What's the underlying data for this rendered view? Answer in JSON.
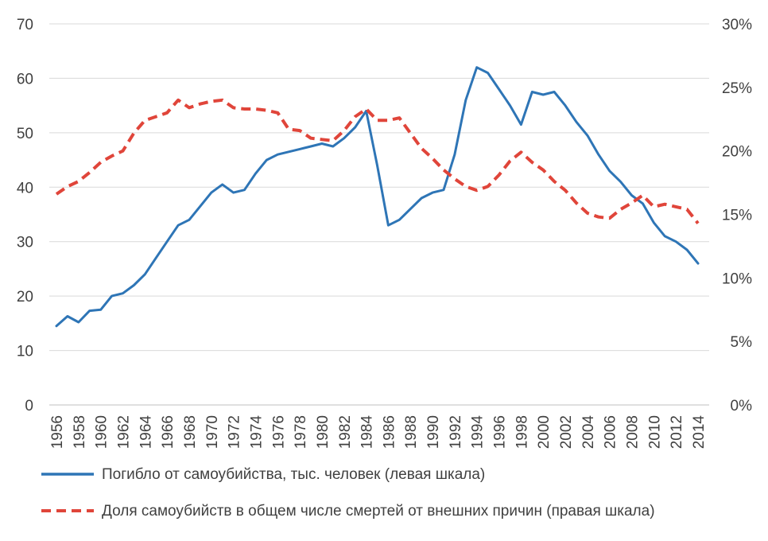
{
  "chart_data": {
    "type": "line",
    "title": "",
    "x": [
      1956,
      1957,
      1958,
      1959,
      1960,
      1961,
      1962,
      1963,
      1964,
      1965,
      1966,
      1967,
      1968,
      1969,
      1970,
      1971,
      1972,
      1973,
      1974,
      1975,
      1976,
      1977,
      1978,
      1979,
      1980,
      1981,
      1982,
      1983,
      1984,
      1985,
      1986,
      1987,
      1988,
      1989,
      1990,
      1991,
      1992,
      1993,
      1994,
      1995,
      1996,
      1997,
      1998,
      1999,
      2000,
      2001,
      2002,
      2003,
      2004,
      2005,
      2006,
      2007,
      2008,
      2009,
      2010,
      2011,
      2012,
      2013,
      2014
    ],
    "x_tick_labels": [
      "1956",
      "1958",
      "1960",
      "1962",
      "1964",
      "1966",
      "1968",
      "1970",
      "1972",
      "1974",
      "1976",
      "1978",
      "1980",
      "1982",
      "1984",
      "1986",
      "1988",
      "1990",
      "1992",
      "1994",
      "1996",
      "1998",
      "2000",
      "2002",
      "2004",
      "2006",
      "2008",
      "2010",
      "2012",
      "2014"
    ],
    "left_axis": {
      "ylim": [
        0,
        70
      ],
      "ticks": [
        "0",
        "10",
        "20",
        "30",
        "40",
        "50",
        "60",
        "70"
      ]
    },
    "right_axis": {
      "ylim": [
        0,
        30
      ],
      "ticks": [
        "0%",
        "5%",
        "10%",
        "15%",
        "20%",
        "25%",
        "30%"
      ]
    },
    "series": [
      {
        "name": "Погибло от самоубийства, тыс. человек (левая шкала)",
        "axis": "left",
        "color": "#2e75b6",
        "style": "solid",
        "values": [
          14.5,
          16.3,
          15.2,
          17.3,
          17.5,
          20.0,
          20.5,
          22.0,
          24.0,
          27.0,
          30.0,
          33.0,
          34.0,
          36.5,
          39.0,
          40.5,
          39.0,
          39.5,
          42.5,
          45.0,
          46.0,
          46.5,
          47.0,
          47.5,
          48.0,
          47.5,
          49.0,
          51.0,
          54.0,
          44.0,
          33.0,
          34.0,
          36.0,
          38.0,
          39.0,
          39.5,
          46.0,
          56.0,
          62.0,
          61.0,
          58.0,
          55.0,
          51.5,
          57.5,
          57.0,
          57.5,
          55.0,
          52.0,
          49.5,
          46.0,
          43.0,
          41.0,
          38.5,
          37.0,
          33.5,
          31.0,
          30.0,
          28.5,
          26.0
        ]
      },
      {
        "name": "Доля самоубийств в общем числе смертей от внешних причин (правая шкала)",
        "axis": "right",
        "color": "#e0453a",
        "style": "dashed",
        "values": [
          16.6,
          17.2,
          17.6,
          18.3,
          19.1,
          19.6,
          20.0,
          21.4,
          22.4,
          22.7,
          23.0,
          24.0,
          23.4,
          23.7,
          23.9,
          24.0,
          23.4,
          23.3,
          23.3,
          23.2,
          23.0,
          21.7,
          21.6,
          21.0,
          20.9,
          20.8,
          21.6,
          22.7,
          23.3,
          22.4,
          22.4,
          22.6,
          21.4,
          20.2,
          19.4,
          18.5,
          17.8,
          17.2,
          16.9,
          17.2,
          18.1,
          19.2,
          19.9,
          19.1,
          18.5,
          17.6,
          16.9,
          15.9,
          15.1,
          14.8,
          14.7,
          15.4,
          15.9,
          16.5,
          15.6,
          15.8,
          15.6,
          15.4,
          14.3
        ]
      }
    ]
  }
}
